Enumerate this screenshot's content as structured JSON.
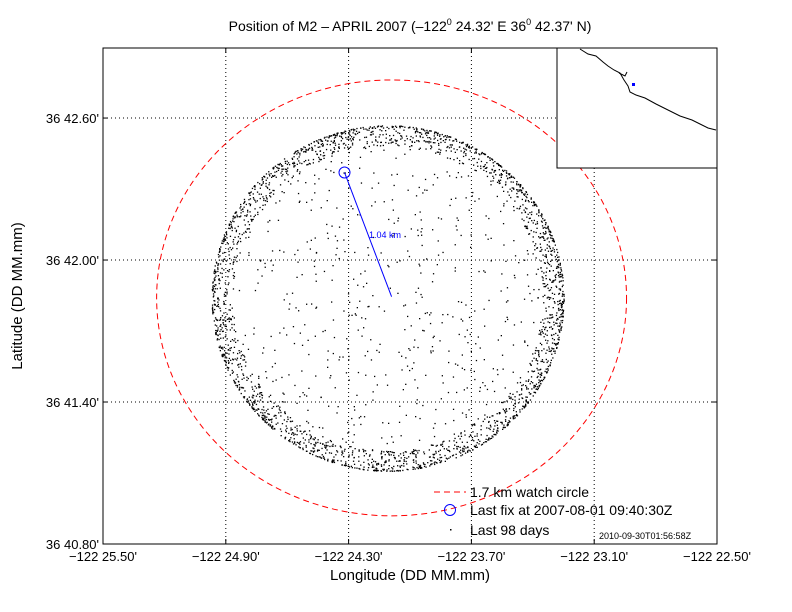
{
  "chart_data": {
    "type": "scatter",
    "title": "Position of M2 – APRIL 2007 (–122° 24.32' E  36° 42.37' N)",
    "title_parts": {
      "prefix": "Position of M2 – APRIL 2007 (–122",
      "lon": " 24.32' E  36",
      "lat": " 42.37' N)",
      "deg": "0"
    },
    "xlabel": "Longitude (DD MM.mm)",
    "ylabel": "Latitude (DD MM.mm)",
    "xlim_minutes": [
      25.5,
      22.5
    ],
    "ylim_minutes": [
      40.8,
      42.896
    ],
    "x_ticks": [
      {
        "value": 25.5,
        "label": "−122 25.50'"
      },
      {
        "value": 24.9,
        "label": "−122 24.90'"
      },
      {
        "value": 24.3,
        "label": "−122 24.30'"
      },
      {
        "value": 23.7,
        "label": "−122 23.70'"
      },
      {
        "value": 23.1,
        "label": "−122 23.10'"
      },
      {
        "value": 22.5,
        "label": "−122 22.50'"
      }
    ],
    "y_ticks": [
      {
        "value": 42.6,
        "label": "36 42.60'"
      },
      {
        "value": 42.0,
        "label": "36 42.00'"
      },
      {
        "value": 41.4,
        "label": "36 41.40'"
      },
      {
        "value": 40.8,
        "label": "36 40.80'"
      }
    ],
    "grid": true,
    "watch_circle": {
      "center_lon_min": 24.09,
      "center_lat_min": 41.84,
      "radius_lon_min": 1.148,
      "radius_lat_min": 0.921,
      "color": "#ff0000"
    },
    "last_fix": {
      "lon_min": 24.32,
      "lat_min": 42.37,
      "color": "#0000ff"
    },
    "anchor": {
      "lon_min": 24.09,
      "lat_min": 41.845
    },
    "distance_label": "1.04 km",
    "positions": {
      "center_lon_min": 24.11,
      "center_lat_min": 41.84,
      "ring_radius_lon_min": 0.86,
      "ring_radius_lat_min": 0.73,
      "count": 3000,
      "color": "#000000"
    },
    "legend": [
      {
        "label": "1.7 km watch circle",
        "style": "dashed-red"
      },
      {
        "label": "Last fix at 2007-08-01 09:40:30Z",
        "style": "blue-circle"
      },
      {
        "label": "Last 98 days",
        "style": "black-dot"
      }
    ],
    "legend_position": "bottom-right",
    "timestamp": "2010-09-30T01:56:58Z"
  }
}
